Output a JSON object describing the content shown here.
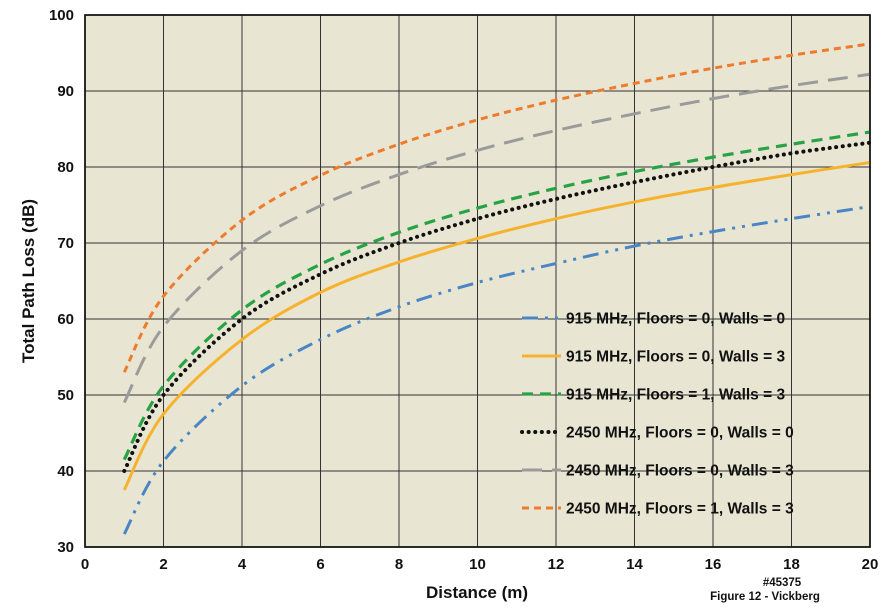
{
  "chart_data": {
    "type": "line",
    "xlabel": "Distance (m)",
    "ylabel": "Total Path Loss (dB)",
    "xlim": [
      0,
      20
    ],
    "ylim": [
      30,
      100
    ],
    "x_ticks": [
      "0",
      "2",
      "4",
      "6",
      "8",
      "10",
      "12",
      "14",
      "16",
      "18",
      "20"
    ],
    "y_ticks": [
      "30",
      "40",
      "50",
      "60",
      "70",
      "80",
      "90",
      "100"
    ],
    "grid": true,
    "legend_position": "bottom-right",
    "plot_background": "#e8e6d3",
    "x": [
      1,
      2,
      4,
      6,
      8,
      10,
      12,
      14,
      16,
      18,
      20
    ],
    "series": [
      {
        "name": "915 MHz, Floors = 0, Walls = 0",
        "color": "#4a86c5",
        "style": "dashdotdot",
        "values": [
          31.7,
          41.3,
          51.2,
          57.3,
          61.6,
          64.8,
          67.3,
          69.6,
          71.5,
          73.2,
          74.8
        ]
      },
      {
        "name": "915 MHz, Floors = 0, Walls = 3",
        "color": "#f7b22d",
        "style": "solid",
        "values": [
          37.5,
          47.5,
          57.3,
          63.5,
          67.5,
          70.6,
          73.2,
          75.4,
          77.3,
          79.0,
          80.6
        ]
      },
      {
        "name": "915 MHz, Floors = 1, Walls = 3",
        "color": "#27a345",
        "style": "dashed",
        "values": [
          41.5,
          51.2,
          61.2,
          67.2,
          71.4,
          74.6,
          77.2,
          79.4,
          81.3,
          83.0,
          84.6
        ]
      },
      {
        "name": "2450 MHz, Floors = 0, Walls = 0",
        "color": "#111111",
        "style": "dotted",
        "values": [
          40.0,
          50.0,
          60.0,
          65.9,
          70.0,
          73.2,
          75.8,
          78.0,
          80.0,
          81.8,
          83.2
        ]
      },
      {
        "name": "2450 MHz, Floors = 0, Walls = 3",
        "color": "#9b9b9b",
        "style": "longdash",
        "values": [
          49.0,
          59.0,
          69.0,
          74.9,
          79.0,
          82.2,
          84.8,
          87.0,
          89.0,
          90.7,
          92.2
        ]
      },
      {
        "name": "2450 MHz, Floors = 1, Walls = 3",
        "color": "#ef7b2c",
        "style": "shortdash",
        "values": [
          53.0,
          63.0,
          73.0,
          78.9,
          83.0,
          86.2,
          88.8,
          91.0,
          93.0,
          94.7,
          96.2
        ]
      }
    ],
    "notes": [
      "#45375",
      "Figure 12 - Vickberg"
    ]
  }
}
